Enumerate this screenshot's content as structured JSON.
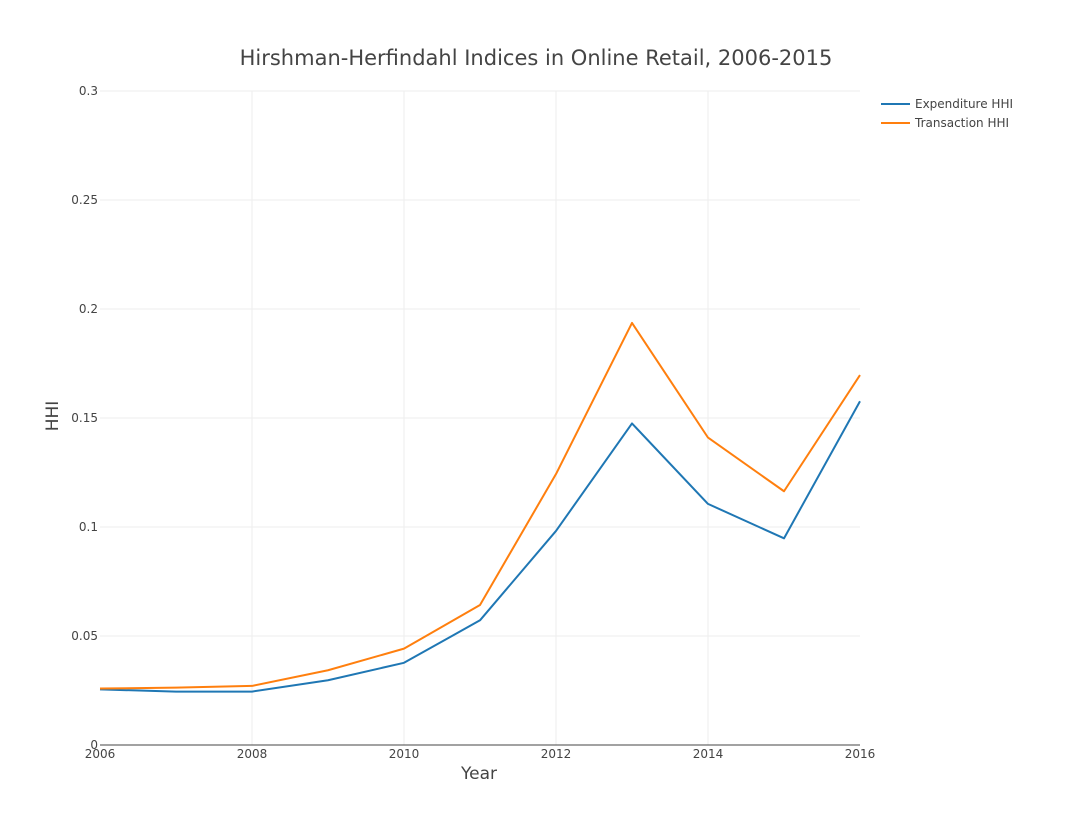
{
  "chart_data": {
    "type": "line",
    "title": "Hirshman-Herfindahl Indices in Online Retail, 2006-2015",
    "xlabel": "Year",
    "ylabel": "HHI",
    "xlim": [
      2006,
      2016
    ],
    "ylim": [
      0,
      0.3
    ],
    "x_ticks": [
      "2006",
      "2008",
      "2010",
      "2012",
      "2014",
      "2016"
    ],
    "y_ticks": [
      "0",
      "0.05",
      "0.1",
      "0.15",
      "0.2",
      "0.25",
      "0.3"
    ],
    "grid": true,
    "legend_position": "top-right",
    "x": [
      2006,
      2007,
      2008,
      2009,
      2010,
      2011,
      2012,
      2013,
      2014,
      2015,
      2016
    ],
    "series": [
      {
        "name": "Expenditure HHI",
        "color": "#1f77b4",
        "values": [
          0.0255,
          0.0245,
          0.0245,
          0.0297,
          0.0377,
          0.0572,
          0.0982,
          0.1475,
          0.1106,
          0.0948,
          0.1577
        ]
      },
      {
        "name": "Transaction HHI",
        "color": "#ff7f0e",
        "values": [
          0.0259,
          0.0263,
          0.0271,
          0.0343,
          0.0442,
          0.0642,
          0.1243,
          0.1936,
          0.141,
          0.1164,
          0.1697
        ]
      }
    ]
  }
}
